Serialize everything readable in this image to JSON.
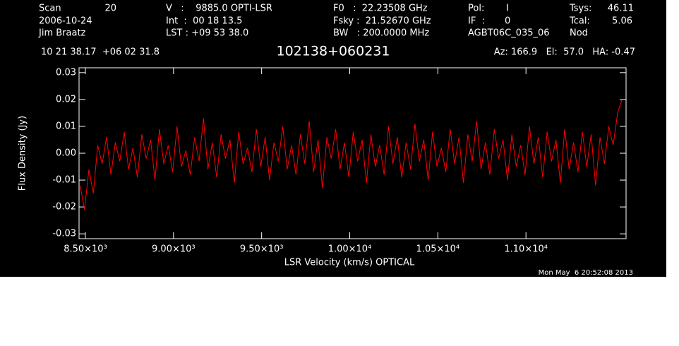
{
  "header": {
    "scan_label": "Scan",
    "scan": "20",
    "date": "2006-10-24",
    "observer": "Jim Braatz",
    "velocity": "V   :    9885.0 OPTI-LSR",
    "int": "Int  :  00 18 13.5",
    "lst": "LST : +09 53 38.0",
    "f0": "F0   :  22.23508 GHz",
    "fsky": "Fsky :  21.52670 GHz",
    "bw": "BW   : 200.0000 MHz",
    "pol_label": "Pol:",
    "pol": "I",
    "if_label": "IF  :",
    "if": "0",
    "project": "AGBT06C_035_06",
    "tsys_label": "Tsys:",
    "tsys": "46.11",
    "tcal_label": "Tcal:",
    "tcal": "5.06",
    "mode": "Nod",
    "coords": "10 21 38.17  +06 02 31.8",
    "azelha": "Az: 166.9   El:  57.0   HA: -0.47",
    "timestamp": "Mon May  6 20:52:08 2013"
  },
  "chart_data": {
    "type": "line",
    "title": "102138+060231",
    "x_label": "LSR Velocity (km/s) OPTICAL",
    "y_label": "Flux Density (Jy)",
    "xlim": [
      8464,
      11568
    ],
    "ylim": [
      -0.0318,
      0.0318
    ],
    "xticks": [
      {
        "value": 8500,
        "label": "8.50×10³"
      },
      {
        "value": 9000,
        "label": "9.00×10³"
      },
      {
        "value": 9500,
        "label": "9.50×10³"
      },
      {
        "value": 10000,
        "label": "1.00×10⁴"
      },
      {
        "value": 10500,
        "label": "1.05×10⁴"
      },
      {
        "value": 11000,
        "label": "1.10×10⁴"
      }
    ],
    "yticks": [
      -0.03,
      -0.02,
      -0.01,
      {
        "value": 0,
        "label": "0.00"
      },
      0.01,
      0.02,
      0.03
    ],
    "x": [
      8470,
      8495,
      8520,
      8545,
      8570,
      8595,
      8620,
      8645,
      8670,
      8695,
      8720,
      8745,
      8770,
      8795,
      8820,
      8845,
      8870,
      8895,
      8920,
      8945,
      8970,
      8995,
      9020,
      9045,
      9070,
      9095,
      9120,
      9145,
      9170,
      9195,
      9220,
      9245,
      9270,
      9295,
      9320,
      9345,
      9370,
      9395,
      9420,
      9445,
      9470,
      9495,
      9520,
      9545,
      9570,
      9595,
      9620,
      9645,
      9670,
      9695,
      9720,
      9745,
      9770,
      9795,
      9820,
      9845,
      9870,
      9895,
      9920,
      9945,
      9970,
      9995,
      10020,
      10045,
      10070,
      10095,
      10120,
      10145,
      10170,
      10195,
      10220,
      10245,
      10270,
      10295,
      10320,
      10345,
      10370,
      10395,
      10420,
      10445,
      10470,
      10495,
      10520,
      10545,
      10570,
      10595,
      10620,
      10645,
      10670,
      10695,
      10720,
      10745,
      10770,
      10795,
      10820,
      10845,
      10870,
      10895,
      10920,
      10945,
      10970,
      10995,
      11020,
      11045,
      11070,
      11095,
      11120,
      11145,
      11170,
      11195,
      11220,
      11245,
      11270,
      11295,
      11320,
      11345,
      11370,
      11395,
      11420,
      11445,
      11470,
      11495,
      11520,
      11545
    ],
    "series": [
      {
        "name": "Flux Density",
        "color": "#ff0000",
        "values": [
          -0.012,
          -0.021,
          -0.006,
          -0.015,
          0.003,
          -0.004,
          0.006,
          -0.008,
          0.004,
          -0.003,
          0.008,
          -0.006,
          0.002,
          -0.009,
          0.007,
          -0.002,
          0.005,
          -0.01,
          0.009,
          -0.004,
          0.003,
          -0.007,
          0.01,
          -0.005,
          0.001,
          -0.008,
          0.006,
          -0.003,
          0.013,
          -0.006,
          0.004,
          -0.009,
          0.007,
          -0.002,
          0.005,
          -0.011,
          0.008,
          -0.004,
          0.002,
          -0.007,
          0.009,
          -0.005,
          0.006,
          -0.01,
          0.004,
          -0.003,
          0.01,
          -0.006,
          0.003,
          -0.008,
          0.007,
          -0.004,
          0.012,
          -0.007,
          0.005,
          -0.013,
          0.006,
          -0.002,
          0.009,
          -0.006,
          0.004,
          -0.009,
          0.008,
          -0.003,
          0.005,
          -0.011,
          0.007,
          -0.005,
          0.003,
          -0.008,
          0.01,
          -0.004,
          0.006,
          -0.009,
          0.004,
          -0.006,
          0.011,
          -0.003,
          0.005,
          -0.01,
          0.008,
          -0.005,
          0.002,
          -0.007,
          0.009,
          -0.004,
          0.006,
          -0.011,
          0.007,
          -0.003,
          0.012,
          -0.006,
          0.004,
          -0.008,
          0.009,
          -0.002,
          0.005,
          -0.01,
          0.007,
          -0.005,
          0.003,
          -0.008,
          0.01,
          -0.004,
          0.006,
          -0.009,
          0.008,
          -0.003,
          0.005,
          -0.011,
          0.009,
          -0.006,
          0.004,
          -0.007,
          0.008,
          -0.005,
          0.007,
          -0.012,
          0.006,
          -0.004,
          0.01,
          0.003,
          0.015,
          0.02
        ]
      }
    ]
  }
}
